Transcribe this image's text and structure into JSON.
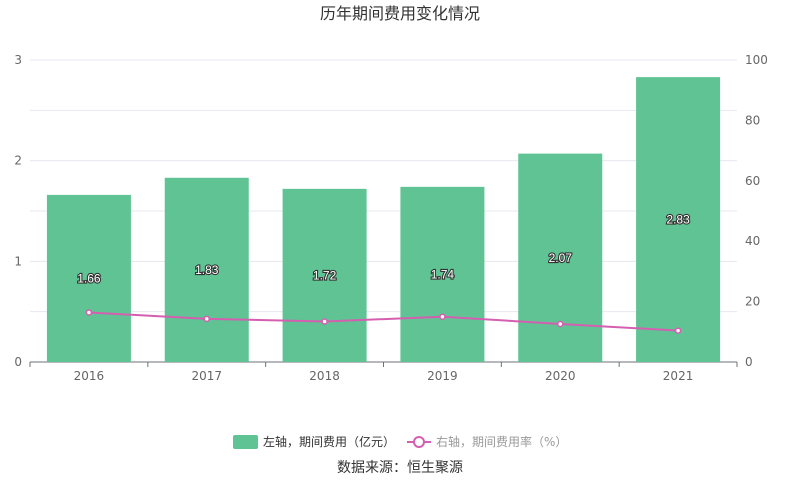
{
  "chart_data": {
    "type": "bar",
    "title": "历年期间费用变化情况",
    "categories": [
      "2016",
      "2017",
      "2018",
      "2019",
      "2020",
      "2021"
    ],
    "series": [
      {
        "name": "左轴，期间费用（亿元）",
        "type": "bar",
        "axis": "left",
        "color": "#5fc393",
        "values": [
          1.66,
          1.83,
          1.72,
          1.74,
          2.07,
          2.83
        ],
        "labels": [
          "1.66",
          "1.83",
          "1.72",
          "1.74",
          "2.07",
          "2.83"
        ]
      },
      {
        "name": "右轴，期间费用率（%）",
        "type": "line",
        "axis": "right",
        "color": "#d45fb0",
        "values": [
          16.4,
          14.3,
          13.4,
          15.0,
          12.6,
          10.4
        ]
      }
    ],
    "y_left": {
      "ylim": [
        0,
        3
      ],
      "ticks": [
        "0",
        "1",
        "2",
        "3"
      ]
    },
    "y_right": {
      "ylim": [
        0,
        100
      ],
      "ticks": [
        "0",
        "20",
        "40",
        "60",
        "80",
        "100"
      ]
    },
    "grid": true,
    "legend_position": "bottom-center",
    "source": "数据来源：恒生聚源"
  }
}
